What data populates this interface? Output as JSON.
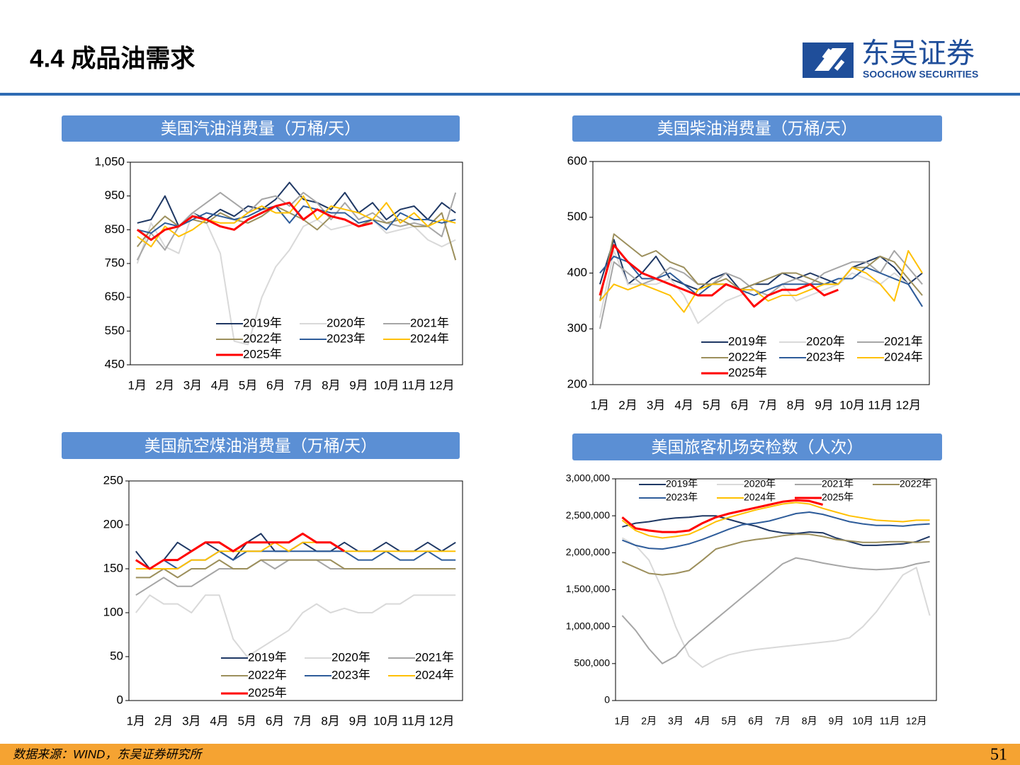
{
  "header": {
    "title": "4.4 成品油需求",
    "logo_cn": "东吴证券",
    "logo_en": "SOOCHOW SECURITIES"
  },
  "footer": {
    "source": "数据来源：WIND，东吴证券研究所",
    "page": "51"
  },
  "chart_data": [
    {
      "type": "line",
      "title": "美国汽油消费量（万桶/天）",
      "categories": [
        "1月",
        null,
        "2月",
        null,
        "3月",
        null,
        "4月",
        null,
        "5月",
        null,
        "6月",
        null,
        "7月",
        null,
        "8月",
        null,
        "9月",
        null,
        "10月",
        null,
        "11月",
        null,
        "12月",
        null
      ],
      "ylim": [
        450,
        1050
      ],
      "yticks": [
        450,
        550,
        650,
        750,
        850,
        950,
        {
          "value": 1050,
          "label": "1,050"
        }
      ],
      "series": [
        {
          "name": "2019年",
          "color": "#1f3864",
          "values": [
            870,
            880,
            950,
            860,
            900,
            880,
            910,
            890,
            920,
            910,
            940,
            990,
            940,
            930,
            910,
            960,
            900,
            930,
            880,
            910,
            920,
            880,
            930,
            900
          ]
        },
        {
          "name": "2020年",
          "color": "#d9d9d9",
          "values": [
            750,
            870,
            800,
            780,
            900,
            870,
            780,
            520,
            510,
            650,
            740,
            790,
            860,
            880,
            850,
            860,
            870,
            880,
            840,
            850,
            860,
            820,
            800,
            820
          ]
        },
        {
          "name": "2021年",
          "color": "#a6a6a6",
          "values": [
            760,
            840,
            790,
            860,
            900,
            930,
            960,
            930,
            900,
            940,
            950,
            920,
            960,
            930,
            880,
            930,
            880,
            900,
            870,
            860,
            870,
            860,
            830,
            960
          ]
        },
        {
          "name": "2022年",
          "color": "#9c8f5c",
          "values": [
            800,
            850,
            890,
            860,
            880,
            870,
            900,
            880,
            870,
            890,
            920,
            900,
            880,
            850,
            890,
            880,
            860,
            880,
            870,
            880,
            860,
            860,
            900,
            760
          ]
        },
        {
          "name": "2023年",
          "color": "#2e5c9a",
          "values": [
            850,
            840,
            870,
            860,
            880,
            900,
            890,
            880,
            890,
            910,
            920,
            870,
            920,
            910,
            900,
            900,
            870,
            880,
            850,
            900,
            880,
            880,
            870,
            880
          ]
        },
        {
          "name": "2024年",
          "color": "#ffc000",
          "values": [
            830,
            800,
            860,
            830,
            850,
            880,
            870,
            870,
            900,
            920,
            900,
            900,
            950,
            880,
            920,
            910,
            900,
            880,
            930,
            870,
            900,
            860,
            880,
            870
          ]
        },
        {
          "name": "2025年",
          "color": "#ff0000",
          "values": [
            850,
            820,
            850,
            860,
            890,
            880,
            860,
            850,
            880,
            900,
            920,
            930,
            880,
            910,
            890,
            880,
            860,
            870,
            null,
            null,
            null,
            null,
            null,
            null
          ]
        }
      ]
    },
    {
      "type": "line",
      "title": "美国柴油消费量（万桶/天）",
      "categories": [
        "1月",
        null,
        "2月",
        null,
        "3月",
        null,
        "4月",
        null,
        "5月",
        null,
        "6月",
        null,
        "7月",
        null,
        "8月",
        null,
        "9月",
        null,
        "10月",
        null,
        "11月",
        null,
        "12月",
        null
      ],
      "ylim": [
        200,
        600
      ],
      "yticks": [
        200,
        300,
        400,
        500,
        600
      ],
      "series": [
        {
          "name": "2019年",
          "color": "#1f3864",
          "values": [
            380,
            460,
            380,
            400,
            430,
            390,
            380,
            370,
            390,
            400,
            370,
            380,
            380,
            400,
            390,
            400,
            390,
            380,
            410,
            420,
            430,
            410,
            380,
            400
          ]
        },
        {
          "name": "2020年",
          "color": "#d9d9d9",
          "values": [
            320,
            440,
            380,
            380,
            380,
            390,
            360,
            310,
            330,
            350,
            360,
            370,
            360,
            380,
            350,
            360,
            370,
            380,
            400,
            390,
            380,
            400,
            380,
            340
          ]
        },
        {
          "name": "2021年",
          "color": "#a6a6a6",
          "values": [
            300,
            420,
            400,
            380,
            390,
            410,
            400,
            380,
            380,
            400,
            390,
            370,
            360,
            380,
            390,
            380,
            400,
            410,
            420,
            420,
            400,
            440,
            410,
            380
          ]
        },
        {
          "name": "2022年",
          "color": "#9c8f5c",
          "values": [
            350,
            470,
            450,
            430,
            440,
            420,
            410,
            380,
            380,
            390,
            370,
            380,
            390,
            400,
            400,
            390,
            380,
            380,
            410,
            410,
            430,
            420,
            390,
            360
          ]
        },
        {
          "name": "2023年",
          "color": "#2e5c9a",
          "values": [
            400,
            430,
            420,
            390,
            390,
            400,
            380,
            360,
            380,
            380,
            370,
            360,
            370,
            380,
            380,
            380,
            380,
            390,
            390,
            410,
            400,
            390,
            380,
            340
          ]
        },
        {
          "name": "2024年",
          "color": "#ffc000",
          "values": [
            350,
            380,
            370,
            380,
            370,
            360,
            330,
            370,
            380,
            380,
            370,
            370,
            350,
            360,
            360,
            370,
            380,
            380,
            410,
            400,
            380,
            350,
            440,
            400
          ]
        },
        {
          "name": "2025年",
          "color": "#ff0000",
          "values": [
            360,
            450,
            420,
            400,
            390,
            380,
            370,
            360,
            360,
            380,
            370,
            340,
            360,
            370,
            370,
            380,
            360,
            370,
            null,
            null,
            null,
            null,
            null,
            null
          ]
        }
      ]
    },
    {
      "type": "line",
      "title": "美国航空煤油消费量（万桶/天）",
      "categories": [
        "1月",
        null,
        "2月",
        null,
        "3月",
        null,
        "4月",
        null,
        "5月",
        null,
        "6月",
        null,
        "7月",
        null,
        "8月",
        null,
        "9月",
        null,
        "10月",
        null,
        "11月",
        null,
        "12月",
        null
      ],
      "ylim": [
        0,
        250
      ],
      "yticks": [
        0,
        50,
        100,
        150,
        200,
        250
      ],
      "series": [
        {
          "name": "2019年",
          "color": "#1f3864",
          "values": [
            170,
            150,
            160,
            180,
            170,
            180,
            170,
            160,
            180,
            190,
            170,
            170,
            180,
            170,
            170,
            180,
            170,
            170,
            180,
            170,
            170,
            180,
            170,
            180
          ]
        },
        {
          "name": "2020年",
          "color": "#d9d9d9",
          "values": [
            100,
            120,
            110,
            110,
            100,
            120,
            120,
            70,
            50,
            60,
            70,
            80,
            100,
            110,
            100,
            105,
            100,
            100,
            110,
            110,
            120,
            120,
            120,
            120
          ]
        },
        {
          "name": "2021年",
          "color": "#a6a6a6",
          "values": [
            120,
            130,
            140,
            130,
            130,
            140,
            150,
            150,
            150,
            160,
            150,
            160,
            160,
            160,
            150,
            150,
            150,
            150,
            150,
            150,
            150,
            150,
            150,
            150
          ]
        },
        {
          "name": "2022年",
          "color": "#9c8f5c",
          "values": [
            140,
            140,
            150,
            140,
            150,
            150,
            160,
            150,
            150,
            160,
            160,
            160,
            160,
            160,
            160,
            150,
            150,
            150,
            150,
            150,
            150,
            150,
            150,
            150
          ]
        },
        {
          "name": "2023年",
          "color": "#2e5c9a",
          "values": [
            160,
            150,
            160,
            150,
            160,
            160,
            170,
            160,
            170,
            170,
            170,
            170,
            170,
            170,
            170,
            170,
            160,
            160,
            170,
            160,
            160,
            170,
            160,
            160
          ]
        },
        {
          "name": "2024年",
          "color": "#ffc000",
          "values": [
            150,
            150,
            150,
            150,
            160,
            160,
            170,
            170,
            170,
            170,
            180,
            170,
            180,
            180,
            180,
            170,
            170,
            170,
            170,
            170,
            170,
            170,
            170,
            170
          ]
        },
        {
          "name": "2025年",
          "color": "#ff0000",
          "values": [
            160,
            150,
            160,
            160,
            170,
            180,
            180,
            170,
            180,
            180,
            180,
            180,
            190,
            180,
            180,
            170,
            null,
            null,
            null,
            null,
            null,
            null,
            null,
            null
          ]
        }
      ]
    },
    {
      "type": "line",
      "title": "美国旅客机场安检数（人次）",
      "categories": [
        "1月",
        null,
        "2月",
        null,
        "3月",
        null,
        "4月",
        null,
        "5月",
        null,
        "6月",
        null,
        "7月",
        null,
        "8月",
        null,
        "9月",
        null,
        "10月",
        null,
        "11月",
        null,
        "12月",
        null
      ],
      "ylim": [
        0,
        3000000
      ],
      "yticks": [
        0,
        {
          "value": 500000,
          "label": "500,000"
        },
        {
          "value": 1000000,
          "label": "1,000,000"
        },
        {
          "value": 1500000,
          "label": "1,500,000"
        },
        {
          "value": 2000000,
          "label": "2,000,000"
        },
        {
          "value": 2500000,
          "label": "2,500,000"
        },
        {
          "value": 3000000,
          "label": "3,000,000"
        }
      ],
      "series": [
        {
          "name": "2019年",
          "color": "#1f3864",
          "values": [
            2350000,
            2400000,
            2420000,
            2450000,
            2470000,
            2480000,
            2500000,
            2500000,
            2450000,
            2400000,
            2360000,
            2300000,
            2270000,
            2260000,
            2280000,
            2270000,
            2200000,
            2150000,
            2100000,
            2100000,
            2110000,
            2120000,
            2150000,
            2220000
          ]
        },
        {
          "name": "2020年",
          "color": "#d9d9d9",
          "values": [
            2200000,
            2100000,
            1900000,
            1500000,
            1000000,
            600000,
            450000,
            550000,
            620000,
            660000,
            690000,
            710000,
            730000,
            750000,
            770000,
            790000,
            810000,
            850000,
            1000000,
            1200000,
            1450000,
            1700000,
            1800000,
            1150000
          ]
        },
        {
          "name": "2021年",
          "color": "#a6a6a6",
          "values": [
            1150000,
            950000,
            700000,
            500000,
            600000,
            800000,
            950000,
            1100000,
            1250000,
            1400000,
            1550000,
            1700000,
            1850000,
            1930000,
            1900000,
            1860000,
            1830000,
            1800000,
            1780000,
            1770000,
            1780000,
            1800000,
            1850000,
            1880000
          ]
        },
        {
          "name": "2022年",
          "color": "#9c8f5c",
          "values": [
            1880000,
            1800000,
            1720000,
            1700000,
            1720000,
            1760000,
            1900000,
            2050000,
            2100000,
            2150000,
            2180000,
            2200000,
            2230000,
            2250000,
            2250000,
            2220000,
            2180000,
            2160000,
            2140000,
            2140000,
            2150000,
            2150000,
            2140000,
            2150000
          ]
        },
        {
          "name": "2023年",
          "color": "#2e5c9a",
          "values": [
            2170000,
            2100000,
            2060000,
            2050000,
            2080000,
            2120000,
            2180000,
            2250000,
            2320000,
            2380000,
            2400000,
            2430000,
            2480000,
            2530000,
            2550000,
            2520000,
            2470000,
            2420000,
            2390000,
            2370000,
            2370000,
            2360000,
            2380000,
            2390000
          ]
        },
        {
          "name": "2024年",
          "color": "#ffc000",
          "values": [
            2440000,
            2300000,
            2230000,
            2200000,
            2220000,
            2250000,
            2330000,
            2420000,
            2480000,
            2530000,
            2580000,
            2620000,
            2660000,
            2680000,
            2660000,
            2600000,
            2550000,
            2500000,
            2470000,
            2440000,
            2430000,
            2420000,
            2440000,
            2440000
          ]
        },
        {
          "name": "2025年",
          "color": "#ff0000",
          "values": [
            2480000,
            2330000,
            2300000,
            2280000,
            2280000,
            2300000,
            2400000,
            2480000,
            2530000,
            2570000,
            2610000,
            2650000,
            2690000,
            2710000,
            2700000,
            2650000,
            null,
            null,
            null,
            null,
            null,
            null,
            null,
            null
          ]
        }
      ]
    }
  ]
}
